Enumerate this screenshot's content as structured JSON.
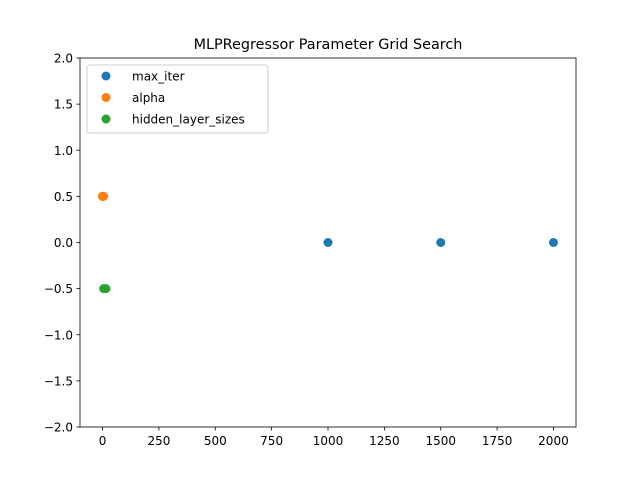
{
  "chart_data": {
    "type": "scatter",
    "title": "MLPRegressor Parameter Grid Search",
    "xlabel": "",
    "ylabel": "",
    "xlim": [
      -100,
      2100
    ],
    "ylim": [
      -2.0,
      2.0
    ],
    "xticks": [
      0,
      250,
      500,
      750,
      1000,
      1250,
      1500,
      1750,
      2000
    ],
    "xtick_labels": [
      "0",
      "250",
      "500",
      "750",
      "1000",
      "1250",
      "1500",
      "1750",
      "2000"
    ],
    "yticks": [
      -2.0,
      -1.5,
      -1.0,
      -0.5,
      0.0,
      0.5,
      1.0,
      1.5,
      2.0
    ],
    "ytick_labels": [
      "−2.0",
      "−1.5",
      "−1.0",
      "−0.5",
      "0.0",
      "0.5",
      "1.0",
      "1.5",
      "2.0"
    ],
    "grid": false,
    "legend_position": "upper-left",
    "series": [
      {
        "name": "max_iter",
        "color": "#1f77b4",
        "points": [
          [
            1000,
            0.0
          ],
          [
            1500,
            0.0
          ],
          [
            2000,
            0.0
          ]
        ]
      },
      {
        "name": "alpha",
        "color": "#ff7f0e",
        "points": [
          [
            0.0001,
            0.5
          ],
          [
            0.001,
            0.5
          ],
          [
            0.01,
            0.5
          ],
          [
            0.1,
            0.5
          ],
          [
            1,
            0.5
          ],
          [
            5,
            0.5
          ]
        ]
      },
      {
        "name": "hidden_layer_sizes",
        "color": "#2ca02c",
        "points": [
          [
            5,
            -0.5
          ],
          [
            10,
            -0.5
          ],
          [
            15,
            -0.5
          ]
        ]
      }
    ]
  }
}
